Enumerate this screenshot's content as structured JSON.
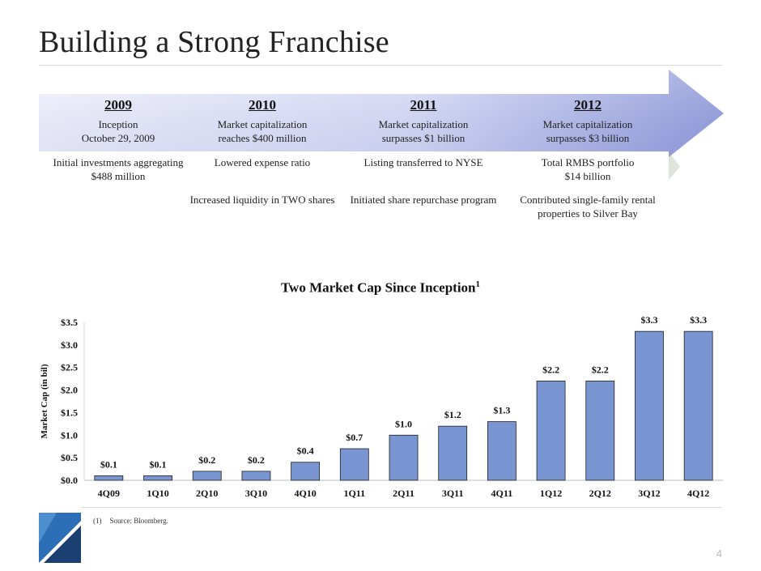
{
  "page": {
    "title": "Building a Strong Franchise",
    "page_number": "4"
  },
  "timeline": [
    {
      "year": "2009",
      "subtitle_line1": "Inception",
      "subtitle_line2": "October 29, 2009",
      "item1_line1": "Initial investments aggregating",
      "item1_line2": "$488 million",
      "item2_line1": "",
      "item2_line2": ""
    },
    {
      "year": "2010",
      "subtitle_line1": "Market capitalization",
      "subtitle_line2": "reaches $400 million",
      "item1_line1": "Lowered expense ratio",
      "item1_line2": "",
      "item2_line1": "Increased liquidity in TWO shares",
      "item2_line2": ""
    },
    {
      "year": "2011",
      "subtitle_line1": "Market capitalization",
      "subtitle_line2": "surpasses $1 billion",
      "item1_line1": "Listing transferred to NYSE",
      "item1_line2": "",
      "item2_line1": "Initiated share repurchase program",
      "item2_line2": ""
    },
    {
      "year": "2012",
      "subtitle_line1": "Market capitalization",
      "subtitle_line2": "surpasses $3 billion",
      "item1_line1": "Total RMBS portfolio",
      "item1_line2": "$14 billion",
      "item2_line1": "Contributed single-family rental",
      "item2_line2": "properties to Silver Bay"
    }
  ],
  "chart_data": {
    "type": "bar",
    "title": "Two Market Cap Since Inception",
    "title_footnote": "1",
    "xlabel": "",
    "ylabel": "Market Cap (in bil)",
    "categories": [
      "4Q09",
      "1Q10",
      "2Q10",
      "3Q10",
      "4Q10",
      "1Q11",
      "2Q11",
      "3Q11",
      "4Q11",
      "1Q12",
      "2Q12",
      "3Q12",
      "4Q12"
    ],
    "values": [
      0.1,
      0.1,
      0.2,
      0.2,
      0.4,
      0.7,
      1.0,
      1.2,
      1.3,
      2.2,
      2.2,
      3.3,
      3.3
    ],
    "data_labels": [
      "$0.1",
      "$0.1",
      "$0.2",
      "$0.2",
      "$0.4",
      "$0.7",
      "$1.0",
      "$1.2",
      "$1.3",
      "$2.2",
      "$2.2",
      "$3.3",
      "$3.3"
    ],
    "yticks": [
      0.0,
      0.5,
      1.0,
      1.5,
      2.0,
      2.5,
      3.0,
      3.5
    ],
    "ytick_labels": [
      "$0.0",
      "$0.5",
      "$1.0",
      "$1.5",
      "$2.0",
      "$2.5",
      "$3.0",
      "$3.5"
    ],
    "ylim": [
      0,
      3.5
    ],
    "grid": false,
    "bar_color": "#7a96d2"
  },
  "footnote": {
    "marker": "(1)",
    "text": "Source:  Bloomberg."
  },
  "colors": {
    "arrow_light": "#eef0fb",
    "arrow_dark": "#9aa3dc",
    "logo_blue": "#2d6fb6",
    "logo_navy": "#1c3f73"
  }
}
